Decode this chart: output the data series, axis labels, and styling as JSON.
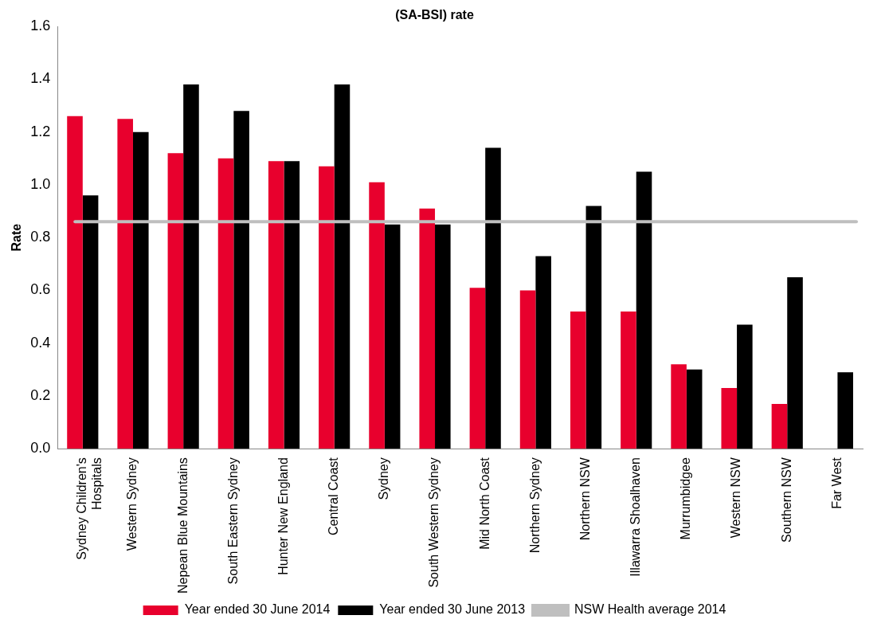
{
  "chart_data": {
    "type": "bar",
    "title": "(SA-BSI) rate",
    "ylabel": "Rate",
    "categories": [
      "Sydney Children's Hospitals",
      "Western Sydney",
      "Nepean Blue Mountains",
      "South Eastern Sydney",
      "Hunter New England",
      "Central Coast",
      "Sydney",
      "South Western Sydney",
      "Mid North Coast",
      "Northern Sydney",
      "Northern NSW",
      "Illawarra Shoalhaven",
      "Murrumbidgee",
      "Western NSW",
      "Southern NSW",
      "Far West"
    ],
    "series": [
      {
        "name": "Year ended 30 June 2014",
        "color": "#e8002d",
        "values": [
          1.26,
          1.25,
          1.12,
          1.1,
          1.09,
          1.07,
          1.01,
          0.91,
          0.61,
          0.6,
          0.52,
          0.52,
          0.32,
          0.23,
          0.17,
          null
        ]
      },
      {
        "name": "Year ended 30 June 2013",
        "color": "#000000",
        "values": [
          0.96,
          1.2,
          1.38,
          1.28,
          1.09,
          1.38,
          0.85,
          0.85,
          1.14,
          0.73,
          0.92,
          1.05,
          0.3,
          0.47,
          0.65,
          0.29
        ]
      }
    ],
    "ylim": [
      0,
      1.6
    ],
    "yticks": [
      "0.0",
      0.2,
      0.4,
      0.6,
      0.8,
      "1.0",
      1.2,
      1.4,
      1.6
    ],
    "ref_lines": [
      {
        "axis": "y",
        "value": 0.86,
        "label": "NSW Health average 2014",
        "color": "#bfbfbf"
      }
    ],
    "grid": false,
    "legend": "bottom"
  }
}
